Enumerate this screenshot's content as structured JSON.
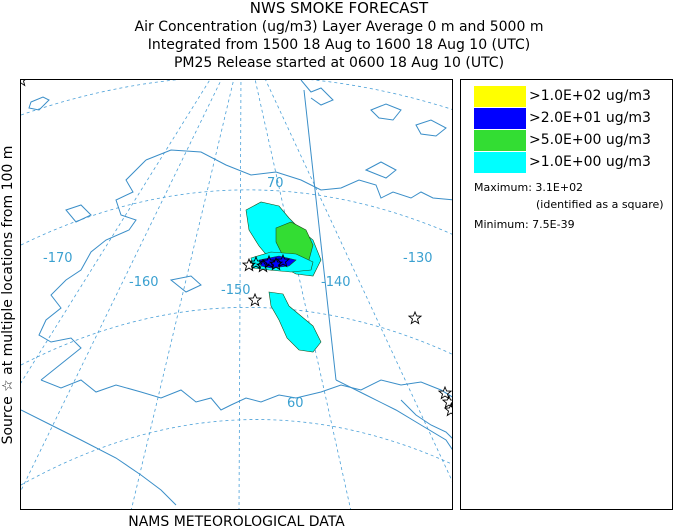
{
  "header": {
    "title": "NWS SMOKE FORECAST",
    "line2": "Air Concentration (ug/m3) Layer Average    0 m and  5000 m",
    "line3": "Integrated from 1500 18 Aug to 1600 18 Aug 10 (UTC)",
    "line4": "PM25 Release started at 0600 18 Aug 10 (UTC)"
  },
  "side_label": "Source ☆    at multiple locations        from   100 m",
  "bottom_label": "NAMS METEOROLOGICAL DATA",
  "map": {
    "lon_labels": [
      "-170",
      "-160",
      "-150",
      "-140",
      "-130"
    ],
    "lat_labels": [
      "70",
      "60"
    ],
    "colors": {
      "grid": "#4aa0d8",
      "coast": "#3a8ec8",
      "yellow": "#ffff00",
      "blue": "#0000ff",
      "green": "#33dd33",
      "cyan": "#00ffff"
    }
  },
  "legend": {
    "items": [
      {
        "label": ">1.0E+02 ug/m3",
        "color": "#ffff00"
      },
      {
        "label": ">2.0E+01 ug/m3",
        "color": "#0000ff"
      },
      {
        "label": ">5.0E+00 ug/m3",
        "color": "#33dd33"
      },
      {
        "label": ">1.0E+00 ug/m3",
        "color": "#00ffff"
      }
    ],
    "maximum": "Maximum: 3.1E+02",
    "max_note": "(identified as a square)",
    "minimum": "Minimum: 7.5E-39"
  }
}
